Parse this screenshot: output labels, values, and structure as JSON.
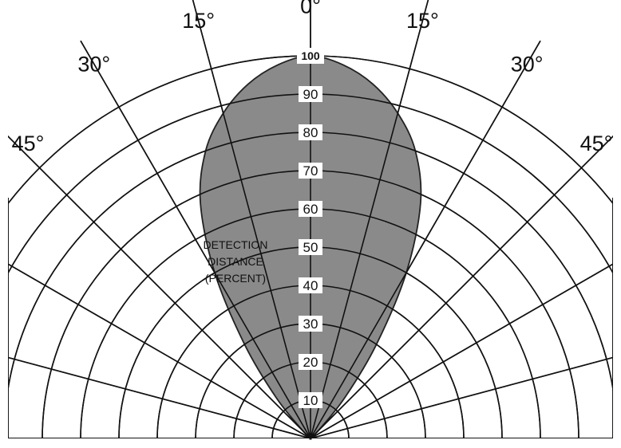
{
  "chart_data": {
    "type": "polar",
    "title": "",
    "angle_unit": "degrees",
    "angle_labels": [
      {
        "angle": 0,
        "text": "0°"
      },
      {
        "angle": -15,
        "text": "15°"
      },
      {
        "angle": 15,
        "text": "15°"
      },
      {
        "angle": -30,
        "text": "30°"
      },
      {
        "angle": 30,
        "text": "30°"
      },
      {
        "angle": -45,
        "text": "45°"
      },
      {
        "angle": 45,
        "text": "45°"
      }
    ],
    "radial_ticks": [
      10,
      20,
      30,
      40,
      50,
      60,
      70,
      80,
      90,
      100
    ],
    "radial_range": [
      0,
      100
    ],
    "radial_label": "DETECTION DISTANCE (PERCENT)",
    "radial_label_lines": [
      "DETECTION",
      "DISTANCE",
      "(PERCENT)"
    ],
    "grid": true,
    "series": [
      {
        "angles": [
          -90,
          -60,
          -45,
          -40,
          -35,
          -30,
          -25,
          -20,
          -15,
          -10,
          -5,
          0,
          5,
          10,
          15,
          20,
          25,
          30,
          35,
          40,
          45,
          60,
          90
        ],
        "values": [
          0,
          0,
          3,
          14,
          30,
          50,
          68,
          80,
          88,
          94,
          98,
          100,
          98,
          94,
          88,
          80,
          68,
          50,
          30,
          14,
          3,
          0,
          0
        ],
        "fill": "#8a8a8a"
      }
    ]
  }
}
